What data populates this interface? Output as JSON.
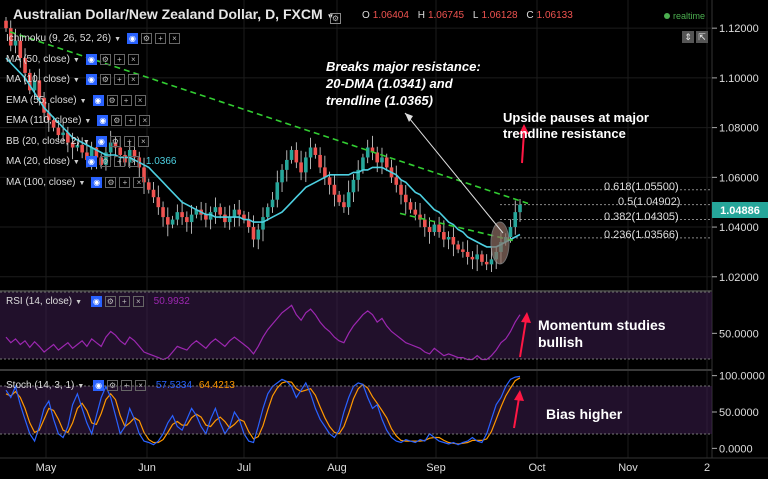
{
  "header": {
    "title": "Australian Dollar/New Zealand Dollar, D, FXCM",
    "open_label": "O",
    "open": "1.06404",
    "high_label": "H",
    "high": "1.06745",
    "low_label": "L",
    "low": "1.06128",
    "close_label": "C",
    "close": "1.06133",
    "realtime": "realtime"
  },
  "indicators": [
    {
      "label": "Ichimoku (9, 26, 52, 26)",
      "value": ""
    },
    {
      "label": "MA (50, close)",
      "value": ""
    },
    {
      "label": "MA (10, close)",
      "value": ""
    },
    {
      "label": "EMA (55, close)",
      "value": ""
    },
    {
      "label": "EMA (110, close)",
      "value": ""
    },
    {
      "label": "BB (20, close, 2)",
      "value": ""
    },
    {
      "label": "MA (20, close)",
      "value": "1.0366"
    },
    {
      "label": "MA (100, close)",
      "value": ""
    }
  ],
  "rsi": {
    "label": "RSI (14, close)",
    "value": "50.9932"
  },
  "stoch": {
    "label": "Stoch (14, 3, 1)",
    "k_value": "57.5334",
    "d_value": "64.4213"
  },
  "price_badge": "1.04886",
  "annotations": {
    "breaks": [
      "Breaks major resistance:",
      "20-DMA (1.0341) and",
      "trendline (1.0365)"
    ],
    "upside": [
      "Upside pauses at major",
      "trendline resistance"
    ],
    "momentum": [
      "Momentum studies",
      "bullish"
    ],
    "bias": "Bias higher"
  },
  "fib_levels": [
    {
      "label": "0.618(1.05500)",
      "value": 1.055
    },
    {
      "label": "0.5(1.04902)",
      "value": 1.04902
    },
    {
      "label": "0.382(1.04305)",
      "value": 1.04305
    },
    {
      "label": "0.236(1.03566)",
      "value": 1.03566
    }
  ],
  "colors": {
    "up": "#26a69a",
    "down": "#ef5350",
    "ma": "#4dd0e1",
    "trend": "#32cd32",
    "rsi": "#9c27b0",
    "stoch_k": "#2962ff",
    "stoch_d": "#ff9800",
    "arrow": "#ff1744",
    "badge": "#26a69a"
  },
  "chart_data": [
    {
      "type": "candlestick",
      "title": "Australian Dollar/New Zealand Dollar, D, FXCM",
      "x_ticks": [
        "May",
        "Jun",
        "Jul",
        "Aug",
        "Sep",
        "Oct",
        "Nov",
        "2"
      ],
      "y_ticks": [
        "1.12000",
        "1.10000",
        "1.08000",
        "1.06000",
        "1.04000",
        "1.02000"
      ],
      "ylim": [
        1.0175,
        1.1265
      ],
      "closes": [
        1.12,
        1.113,
        1.115,
        1.108,
        1.102,
        1.095,
        1.099,
        1.092,
        1.086,
        1.083,
        1.08,
        1.077,
        1.078,
        1.074,
        1.072,
        1.073,
        1.07,
        1.067,
        1.072,
        1.068,
        1.065,
        1.07,
        1.074,
        1.072,
        1.069,
        1.066,
        1.071,
        1.068,
        1.064,
        1.058,
        1.055,
        1.052,
        1.048,
        1.044,
        1.041,
        1.043,
        1.046,
        1.044,
        1.042,
        1.045,
        1.047,
        1.045,
        1.043,
        1.046,
        1.048,
        1.045,
        1.042,
        1.044,
        1.047,
        1.045,
        1.043,
        1.04,
        1.035,
        1.039,
        1.044,
        1.048,
        1.051,
        1.058,
        1.063,
        1.067,
        1.071,
        1.066,
        1.062,
        1.068,
        1.072,
        1.069,
        1.064,
        1.06,
        1.057,
        1.053,
        1.05,
        1.048,
        1.054,
        1.059,
        1.063,
        1.068,
        1.072,
        1.07,
        1.066,
        1.068,
        1.064,
        1.06,
        1.057,
        1.053,
        1.05,
        1.047,
        1.045,
        1.043,
        1.04,
        1.038,
        1.041,
        1.038,
        1.035,
        1.036,
        1.033,
        1.031,
        1.03,
        1.028,
        1.027,
        1.029,
        1.026,
        1.025,
        1.027,
        1.03,
        1.034,
        1.036,
        1.04,
        1.046,
        1.049
      ],
      "ma_20": [
        1.108,
        1.106,
        1.104,
        1.102,
        1.1,
        1.097,
        1.094,
        1.091,
        1.088,
        1.086,
        1.084,
        1.082,
        1.08,
        1.078,
        1.076,
        1.075,
        1.074,
        1.073,
        1.072,
        1.071,
        1.07,
        1.069,
        1.069,
        1.069,
        1.068,
        1.068,
        1.068,
        1.067,
        1.066,
        1.065,
        1.064,
        1.062,
        1.06,
        1.058,
        1.056,
        1.054,
        1.052,
        1.05,
        1.049,
        1.048,
        1.047,
        1.046,
        1.045,
        1.045,
        1.044,
        1.044,
        1.044,
        1.044,
        1.044,
        1.044,
        1.043,
        1.043,
        1.042,
        1.042,
        1.042,
        1.043,
        1.044,
        1.045,
        1.046,
        1.048,
        1.05,
        1.052,
        1.054,
        1.056,
        1.057,
        1.058,
        1.059,
        1.06,
        1.061,
        1.061,
        1.061,
        1.061,
        1.061,
        1.062,
        1.062,
        1.063,
        1.063,
        1.064,
        1.064,
        1.064,
        1.063,
        1.062,
        1.061,
        1.059,
        1.058,
        1.056,
        1.054,
        1.053,
        1.051,
        1.049,
        1.047,
        1.046,
        1.044,
        1.042,
        1.041,
        1.039,
        1.038,
        1.036,
        1.035,
        1.034,
        1.033,
        1.032,
        1.032,
        1.032,
        1.033,
        1.034,
        1.035,
        1.036,
        1.037
      ],
      "trendline_upper": {
        "from": 1.1185,
        "to": 1.0495
      },
      "trendline_lower": {
        "from": 1.0455,
        "to": 1.0345
      },
      "fib_levels": [
        1.055,
        1.04902,
        1.04305,
        1.03566
      ]
    },
    {
      "type": "line",
      "title": "RSI (14, close)",
      "y_ticks": [
        "50.0000"
      ],
      "ylim": [
        15,
        90
      ],
      "values": [
        46,
        40,
        44,
        38,
        42,
        35,
        41,
        36,
        30,
        34,
        38,
        32,
        36,
        40,
        34,
        38,
        42,
        36,
        44,
        40,
        36,
        46,
        52,
        48,
        42,
        38,
        46,
        42,
        36,
        30,
        28,
        26,
        24,
        22,
        24,
        30,
        36,
        34,
        32,
        38,
        42,
        38,
        34,
        40,
        44,
        40,
        36,
        42,
        46,
        42,
        38,
        34,
        28,
        36,
        46,
        54,
        60,
        66,
        72,
        76,
        80,
        70,
        64,
        72,
        76,
        70,
        62,
        56,
        52,
        46,
        42,
        40,
        50,
        58,
        64,
        70,
        74,
        70,
        62,
        66,
        58,
        52,
        48,
        44,
        40,
        38,
        36,
        34,
        30,
        28,
        34,
        30,
        26,
        28,
        26,
        24,
        24,
        22,
        22,
        26,
        22,
        22,
        26,
        32,
        40,
        44,
        52,
        62,
        70
      ]
    },
    {
      "type": "line",
      "title": "Stoch (14, 3, 1)",
      "y_ticks": [
        "100.0000",
        "50.0000",
        "0.0000"
      ],
      "ylim": [
        -5,
        105
      ],
      "series": [
        {
          "name": "K",
          "values": [
            80,
            70,
            85,
            60,
            40,
            20,
            10,
            30,
            55,
            65,
            40,
            20,
            15,
            30,
            60,
            75,
            55,
            35,
            20,
            45,
            70,
            85,
            70,
            45,
            20,
            30,
            55,
            40,
            20,
            10,
            8,
            5,
            10,
            20,
            35,
            45,
            30,
            25,
            40,
            55,
            45,
            30,
            20,
            40,
            55,
            35,
            20,
            30,
            50,
            40,
            20,
            10,
            8,
            30,
            55,
            75,
            85,
            90,
            95,
            92,
            85,
            70,
            80,
            90,
            75,
            55,
            40,
            30,
            20,
            15,
            25,
            50,
            70,
            85,
            90,
            88,
            70,
            55,
            60,
            40,
            25,
            15,
            10,
            8,
            12,
            10,
            8,
            12,
            10,
            20,
            15,
            10,
            8,
            6,
            8,
            5,
            8,
            10,
            15,
            10,
            8,
            20,
            40,
            60,
            70,
            85,
            95,
            98,
            99
          ]
        },
        {
          "name": "D",
          "values": [
            75,
            72,
            78,
            70,
            55,
            35,
            22,
            25,
            40,
            55,
            52,
            40,
            25,
            22,
            35,
            55,
            62,
            52,
            35,
            33,
            48,
            67,
            75,
            67,
            45,
            30,
            35,
            42,
            38,
            22,
            12,
            8,
            8,
            12,
            22,
            33,
            37,
            32,
            32,
            42,
            47,
            43,
            32,
            30,
            38,
            43,
            37,
            28,
            33,
            40,
            37,
            23,
            13,
            16,
            31,
            53,
            72,
            83,
            90,
            92,
            91,
            82,
            78,
            80,
            82,
            73,
            57,
            42,
            30,
            22,
            20,
            30,
            48,
            68,
            82,
            88,
            83,
            71,
            62,
            52,
            42,
            27,
            17,
            11,
            10,
            10,
            10,
            10,
            11,
            14,
            15,
            15,
            11,
            8,
            7,
            6,
            7,
            8,
            11,
            11,
            11,
            13,
            23,
            40,
            57,
            72,
            83,
            93,
            97
          ]
        }
      ]
    }
  ]
}
